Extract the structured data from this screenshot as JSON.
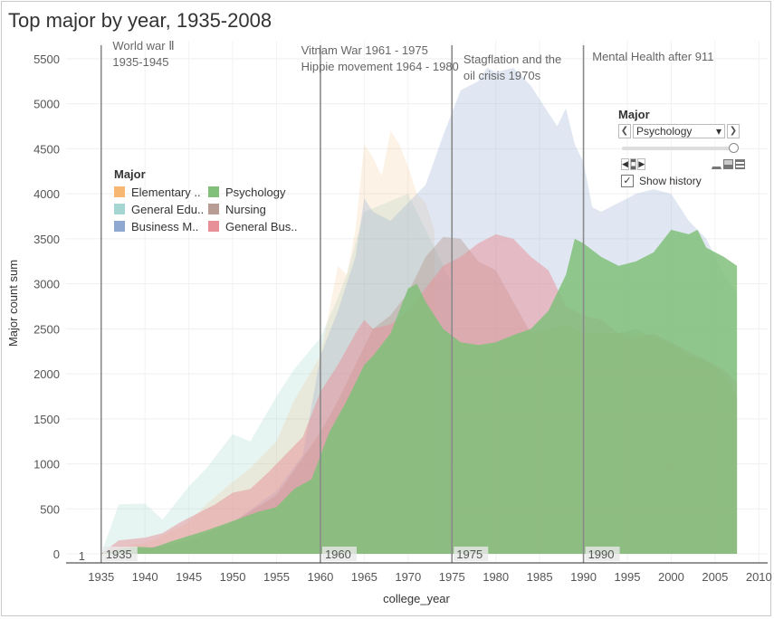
{
  "title": "Top major by year, 1935-2008",
  "legend": {
    "title": "Major",
    "items": [
      {
        "label": "Elementary ..",
        "color": "#f5b772"
      },
      {
        "label": "Psychology",
        "color": "#80c07a"
      },
      {
        "label": "General Edu..",
        "color": "#a6d6d2"
      },
      {
        "label": "Nursing",
        "color": "#b89d94"
      },
      {
        "label": "Business M..",
        "color": "#8fa8cf"
      },
      {
        "label": "General Bus..",
        "color": "#e89097"
      }
    ]
  },
  "annotations": [
    {
      "lines": [
        "World war Ⅱ",
        "1935-1945"
      ],
      "x": 1936.3,
      "y": 5600
    },
    {
      "lines": [
        "Vitnam War 1961 - 1975",
        "Hippie movement 1964 - 1980"
      ],
      "x": 1957.8,
      "y": 5550
    },
    {
      "lines": [
        "Stagflation and the",
        "oil crisis 1970s"
      ],
      "x": 1976.3,
      "y": 5450
    },
    {
      "lines": [
        "Mental Health after 911"
      ],
      "x": 1991.0,
      "y": 5480
    }
  ],
  "panel": {
    "title": "Major",
    "selected": "Psychology",
    "show_history_label": "Show history",
    "show_history_checked": true,
    "prev_glyph": "❮",
    "next_glyph": "❯",
    "dropdown_glyph": "▾",
    "check_glyph": "✓",
    "back_glyph": "◀",
    "stop_glyph": "■",
    "play_glyph": "▶"
  },
  "chart_data": {
    "type": "area",
    "title": "Top major by year, 1935-2008",
    "xlabel": "college_year",
    "ylabel": "Major count sum",
    "xlim": [
      1931,
      2011
    ],
    "ylim": [
      -100,
      5700
    ],
    "xticks": [
      1935,
      1940,
      1945,
      1950,
      1955,
      1960,
      1965,
      1970,
      1975,
      1980,
      1985,
      1990,
      1995,
      2000,
      2005,
      2010
    ],
    "yticks": [
      0,
      500,
      1000,
      1500,
      2000,
      2500,
      3000,
      3500,
      4000,
      4500,
      5000,
      5500
    ],
    "first_point_label": {
      "x": 1932.0,
      "text": "1"
    },
    "reference_lines": [
      {
        "x": 1935,
        "label": "1935"
      },
      {
        "x": 1960,
        "label": "1960"
      },
      {
        "x": 1975,
        "label": "1975"
      },
      {
        "x": 1990,
        "label": "1990"
      }
    ],
    "grid": true,
    "series": [
      {
        "name": "General Edu..",
        "color": "#a6d6d2",
        "opacity": 0.28,
        "x": [
          1935,
          1937,
          1940,
          1942,
          1945,
          1947,
          1950,
          1952,
          1955,
          1957,
          1960,
          1962,
          1963,
          1965,
          1970,
          1975
        ],
        "values": [
          0,
          550,
          560,
          380,
          750,
          950,
          1330,
          1250,
          1750,
          2050,
          2400,
          2850,
          3100,
          3800,
          4000,
          3000
        ]
      },
      {
        "name": "Elementary ..",
        "color": "#f5b772",
        "opacity": 0.18,
        "x": [
          1935,
          1937,
          1940,
          1942,
          1945,
          1947,
          1950,
          1952,
          1955,
          1957,
          1960,
          1962,
          1963,
          1964,
          1965,
          1966,
          1967,
          1968,
          1969,
          1970,
          1971,
          1972,
          1973
        ],
        "values": [
          0,
          80,
          120,
          200,
          350,
          550,
          800,
          950,
          1250,
          1700,
          2200,
          3200,
          3100,
          3600,
          4550,
          4400,
          4200,
          4700,
          4550,
          4300,
          4000,
          3900,
          3600
        ]
      },
      {
        "name": "Business M..",
        "color": "#8fa8cf",
        "opacity": 0.28,
        "x": [
          1935,
          1940,
          1945,
          1950,
          1955,
          1958,
          1960,
          1962,
          1964,
          1965,
          1966,
          1968,
          1970,
          1972,
          1974,
          1976,
          1978,
          1979,
          1980,
          1982,
          1984,
          1986,
          1987,
          1988,
          1989,
          1990,
          1991,
          1992,
          1994,
          1996,
          1998,
          2000,
          2002,
          2004,
          2006,
          2007.5
        ],
        "values": [
          0,
          60,
          150,
          350,
          700,
          1100,
          2200,
          2700,
          3300,
          3950,
          3800,
          3700,
          3900,
          4100,
          4650,
          5150,
          5250,
          5400,
          5350,
          5400,
          5200,
          4900,
          4750,
          4950,
          4550,
          4350,
          3850,
          3800,
          3900,
          4000,
          4050,
          4000,
          3700,
          3500,
          3100,
          2900
        ]
      },
      {
        "name": "Nursing",
        "color": "#b89d94",
        "opacity": 0.45,
        "x": [
          1935,
          1940,
          1945,
          1950,
          1955,
          1960,
          1962,
          1964,
          1966,
          1968,
          1970,
          1972,
          1974,
          1976,
          1978,
          1980,
          1982,
          1984,
          1986,
          1988,
          1990,
          1992,
          1994,
          1996,
          1998,
          2000,
          2002,
          2004,
          2006,
          2007.5
        ],
        "values": [
          0,
          60,
          150,
          350,
          650,
          1350,
          1700,
          2100,
          2500,
          2650,
          2900,
          3300,
          3520,
          3500,
          3250,
          3150,
          2800,
          2450,
          2500,
          2550,
          2450,
          2450,
          2450,
          2500,
          2400,
          2350,
          2200,
          2150,
          2000,
          1750
        ]
      },
      {
        "name": "General Bus..",
        "color": "#e89097",
        "opacity": 0.5,
        "x": [
          1935,
          1937,
          1940,
          1942,
          1944,
          1946,
          1948,
          1950,
          1952,
          1954,
          1956,
          1958,
          1960,
          1962,
          1964,
          1965,
          1966,
          1968,
          1970,
          1972,
          1974,
          1976,
          1978,
          1980,
          1982,
          1984,
          1986,
          1988,
          1990,
          1992,
          1994,
          1996,
          1998,
          2000,
          2002,
          2004,
          2006,
          2007.5
        ],
        "values": [
          0,
          150,
          180,
          230,
          350,
          450,
          550,
          680,
          720,
          900,
          1100,
          1300,
          1800,
          2100,
          2450,
          2600,
          2500,
          2550,
          2700,
          2950,
          3200,
          3300,
          3450,
          3550,
          3500,
          3300,
          3150,
          2750,
          2650,
          2600,
          2450,
          2400,
          2450,
          2350,
          2250,
          2150,
          2050,
          1900
        ]
      },
      {
        "name": "Psychology",
        "color": "#80c07a",
        "opacity": 0.85,
        "x": [
          1935,
          1937,
          1939,
          1941,
          1943,
          1945,
          1947,
          1949,
          1951,
          1953,
          1955,
          1957,
          1959,
          1961,
          1963,
          1965,
          1966,
          1968,
          1970,
          1971,
          1972,
          1974,
          1976,
          1978,
          1980,
          1982,
          1984,
          1986,
          1988,
          1989,
          1990,
          1992,
          1994,
          1996,
          1998,
          2000,
          2002,
          2003,
          2004,
          2006,
          2007.5
        ],
        "values": [
          0,
          50,
          80,
          70,
          140,
          200,
          260,
          330,
          400,
          470,
          520,
          720,
          830,
          1350,
          1700,
          2100,
          2200,
          2450,
          2950,
          3000,
          2800,
          2500,
          2350,
          2320,
          2350,
          2430,
          2500,
          2700,
          3100,
          3500,
          3450,
          3300,
          3200,
          3250,
          3350,
          3600,
          3550,
          3600,
          3400,
          3300,
          3200
        ]
      }
    ]
  }
}
